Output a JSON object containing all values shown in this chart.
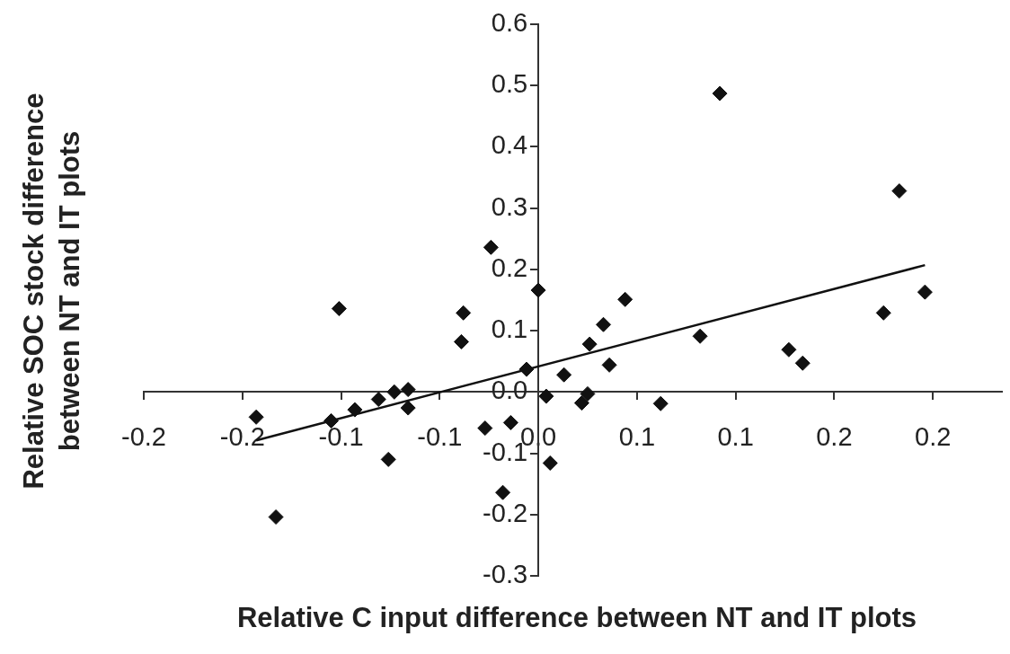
{
  "chart_data": {
    "type": "scatter",
    "xlabel": "Relative C input difference between NT and IT plots",
    "ylabel": "Relative SOC stock difference\nbetween NT and IT plots",
    "xlim": [
      -0.2,
      0.235
    ],
    "xticks": [
      {
        "value": -0.2,
        "label": "-0.2"
      },
      {
        "value": -0.15,
        "label": "-0.2"
      },
      {
        "value": -0.1,
        "label": "-0.1"
      },
      {
        "value": -0.05,
        "label": "-0.1"
      },
      {
        "value": 0,
        "label": "0.0"
      },
      {
        "value": 0.05,
        "label": "0.1"
      },
      {
        "value": 0.1,
        "label": "0.1"
      },
      {
        "value": 0.15,
        "label": "0.2"
      },
      {
        "value": 0.2,
        "label": "0.2"
      }
    ],
    "ylim": [
      -0.3,
      0.6
    ],
    "yticks": [
      {
        "value": -0.3,
        "label": "-0.3"
      },
      {
        "value": -0.2,
        "label": "-0.2"
      },
      {
        "value": -0.1,
        "label": "-0.1"
      },
      {
        "value": 0,
        "label": "0.0"
      },
      {
        "value": 0.1,
        "label": "0.1"
      },
      {
        "value": 0.2,
        "label": "0.2"
      },
      {
        "value": 0.3,
        "label": "0.3"
      },
      {
        "value": 0.4,
        "label": "0.4"
      },
      {
        "value": 0.5,
        "label": "0.5"
      },
      {
        "value": 0.6,
        "label": "0.6"
      }
    ],
    "grid": false,
    "legend": false,
    "marker": "diamond",
    "series": [
      {
        "type": "scatter",
        "color": "#111111",
        "x": [
          -0.143,
          -0.101,
          -0.133,
          -0.105,
          -0.093,
          -0.081,
          -0.073,
          -0.066,
          -0.066,
          -0.076,
          -0.038,
          -0.039,
          -0.027,
          -0.014,
          -0.018,
          -0.024,
          0,
          -0.006,
          0.004,
          0.006,
          0.013,
          0.022,
          0.025,
          0.026,
          0.033,
          0.036,
          0.044,
          0.062,
          0.082,
          0.092,
          0.127,
          0.134,
          0.175,
          0.183,
          0.196
        ],
        "values": [
          -0.041,
          0.136,
          -0.204,
          -0.047,
          -0.029,
          -0.012,
          0,
          0.004,
          -0.026,
          -0.11,
          0.129,
          0.082,
          -0.059,
          -0.05,
          -0.164,
          0.236,
          0.166,
          0.037,
          -0.007,
          -0.116,
          0.028,
          -0.018,
          -0.003,
          0.078,
          0.11,
          0.044,
          0.151,
          -0.019,
          0.091,
          0.487,
          0.069,
          0.047,
          0.129,
          0.328,
          0.163
        ]
      },
      {
        "type": "line",
        "color": "#111111",
        "line_style": "solid",
        "marker": "none",
        "x": [
          -0.143,
          0.196
        ],
        "values": [
          -0.079,
          0.207
        ]
      }
    ]
  }
}
